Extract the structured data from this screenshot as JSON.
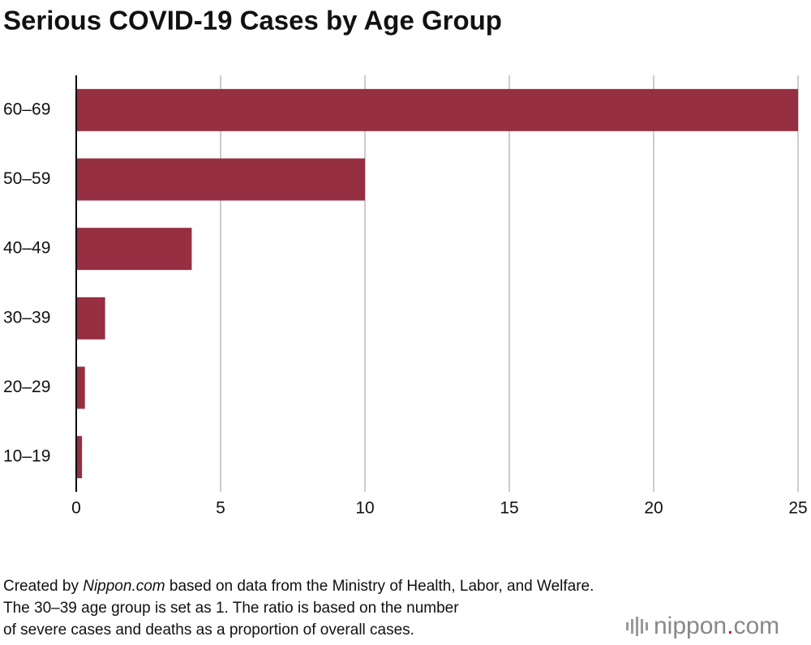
{
  "chart_data": {
    "type": "bar",
    "orientation": "horizontal",
    "title": "Serious COVID-19 Cases by Age Group",
    "categories": [
      "60–69",
      "50–59",
      "40–49",
      "30–39",
      "20–29",
      "10–19"
    ],
    "values": [
      25,
      10,
      4,
      1,
      0.3,
      0.2
    ],
    "color": "#952f41",
    "xlim": [
      0,
      25
    ],
    "xticks": [
      0,
      5,
      10,
      15,
      20,
      25
    ],
    "grid": true
  },
  "footer": {
    "source": [
      "Created by ",
      "Nippon.com",
      " based on data from the Ministry of Health, Labor, and Welfare."
    ],
    "notes": [
      "The 30–39 age group is set as 1. The ratio is based on the number",
      "of severe cases and deaths as a proportion of overall cases."
    ],
    "logo": [
      "nippon",
      ".",
      "com"
    ]
  }
}
